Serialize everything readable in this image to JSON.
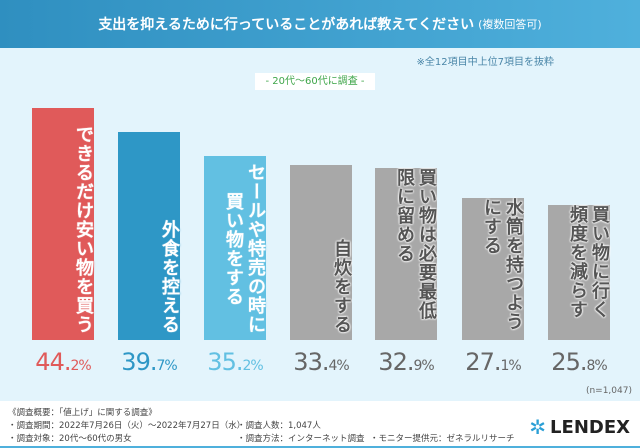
{
  "header": {
    "title": "支出を抑えるために行っていることがあれば教えてください",
    "title_suffix": "(複数回答可)"
  },
  "note": "※全12項目中上位7項目を抜粋",
  "scope": "- 20代～60代に調査 -",
  "sample": "(n=1,047)",
  "chart_data": {
    "type": "bar",
    "title": "支出を抑えるために行っていることがあれば教えてください (複数回答可)",
    "categories": [
      [
        "できるだけ安い物を買う"
      ],
      [
        "外食を控える"
      ],
      [
        "セールや特売の時に",
        "買い物をする"
      ],
      [
        "自炊をする"
      ],
      [
        "買い物は必要最低限に留める"
      ],
      [
        "水筒を持つようにする"
      ],
      [
        "買い物に行く頻度を減らす"
      ]
    ],
    "values": [
      44.2,
      39.7,
      35.2,
      33.4,
      32.9,
      27.1,
      25.8
    ],
    "value_labels": [
      [
        "44.",
        "2%"
      ],
      [
        "39.",
        "7%"
      ],
      [
        "35.",
        "2%"
      ],
      [
        "33.",
        "4%"
      ],
      [
        "32.",
        "9%"
      ],
      [
        "27.",
        "1%"
      ],
      [
        "25.",
        "8%"
      ]
    ],
    "colors": [
      "#e05a5a",
      "#2e97c6",
      "#62c0e2",
      "#a8a8a8",
      "#a8a8a8",
      "#a8a8a8",
      "#a8a8a8"
    ],
    "ylim": [
      0,
      50
    ],
    "grid": false,
    "legend": "none"
  },
  "footer": {
    "l1": "《調査概要：「値上げ」に関する調査》",
    "l2": "・調査期間：2022年7月26日（火）～2022年7月27日（水）",
    "l3": "・調査対象：20代～60代の男女",
    "m1": "・調査人数：1,047人",
    "m2": "・調査方法：インターネット調査",
    "r2": "・モニター提供元：ゼネラルリサーチ",
    "logo": "LENDEX"
  }
}
